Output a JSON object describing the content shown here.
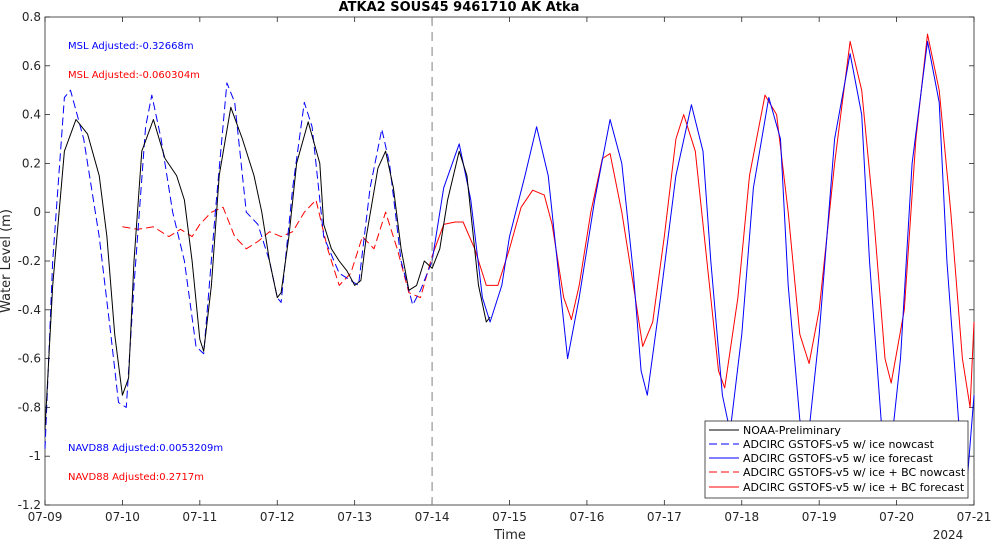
{
  "colors": {
    "observed": "#000000",
    "blue": "#0000ff",
    "red": "#ff0000",
    "axis": "#262626",
    "divider": "#808080"
  },
  "annotations": {
    "msl_blue": "MSL Adjusted:-0.32668m",
    "msl_red": "MSL Adjusted:-0.060304m",
    "navd_blue": "NAVD88 Adjusted:0.0053209m",
    "navd_red": "NAVD88 Adjusted:0.2717m"
  },
  "chart_data": {
    "type": "line",
    "title": "ATKA2 SOUS45 9461710 AK Atka",
    "xlabel": "Time",
    "ylabel": "Water Level (m)",
    "x_ticks": [
      "07-09",
      "07-10",
      "07-11",
      "07-12",
      "07-13",
      "07-14",
      "07-15",
      "07-16",
      "07-17",
      "07-18",
      "07-19",
      "07-20",
      "07-21"
    ],
    "x_year_label": "2024",
    "x_range_days": [
      9,
      21
    ],
    "ylim": [
      -1.2,
      0.8
    ],
    "y_ticks": [
      "-1.2",
      "-1",
      "-0.8",
      "-0.6",
      "-0.4",
      "-0.2",
      "0",
      "0.2",
      "0.4",
      "0.6",
      "0.8"
    ],
    "y_tick_values": [
      -1.2,
      -1.0,
      -0.8,
      -0.6,
      -0.4,
      -0.2,
      0,
      0.2,
      0.4,
      0.6,
      0.8
    ],
    "nowcast_forecast_divider_day": 14,
    "legend_position": "bottom-right",
    "series": [
      {
        "name": "NOAA-Preliminary",
        "color": "#000000",
        "dash": "solid",
        "points": [
          [
            9.0,
            -0.89
          ],
          [
            9.1,
            -0.3
          ],
          [
            9.25,
            0.25
          ],
          [
            9.4,
            0.38
          ],
          [
            9.55,
            0.32
          ],
          [
            9.7,
            0.15
          ],
          [
            9.8,
            -0.1
          ],
          [
            9.9,
            -0.5
          ],
          [
            10.0,
            -0.75
          ],
          [
            10.08,
            -0.68
          ],
          [
            10.15,
            -0.2
          ],
          [
            10.25,
            0.25
          ],
          [
            10.4,
            0.38
          ],
          [
            10.55,
            0.22
          ],
          [
            10.7,
            0.15
          ],
          [
            10.8,
            0.05
          ],
          [
            10.9,
            -0.2
          ],
          [
            11.0,
            -0.52
          ],
          [
            11.05,
            -0.57
          ],
          [
            11.15,
            -0.3
          ],
          [
            11.25,
            0.15
          ],
          [
            11.4,
            0.43
          ],
          [
            11.55,
            0.3
          ],
          [
            11.7,
            0.15
          ],
          [
            11.8,
            0.0
          ],
          [
            11.9,
            -0.2
          ],
          [
            12.0,
            -0.35
          ],
          [
            12.05,
            -0.33
          ],
          [
            12.15,
            -0.1
          ],
          [
            12.25,
            0.2
          ],
          [
            12.4,
            0.37
          ],
          [
            12.55,
            0.2
          ],
          [
            12.6,
            -0.05
          ],
          [
            12.7,
            -0.15
          ],
          [
            12.8,
            -0.2
          ],
          [
            12.9,
            -0.24
          ],
          [
            13.0,
            -0.3
          ],
          [
            13.08,
            -0.28
          ],
          [
            13.15,
            -0.1
          ],
          [
            13.3,
            0.18
          ],
          [
            13.4,
            0.25
          ],
          [
            13.5,
            0.1
          ],
          [
            13.6,
            -0.15
          ],
          [
            13.7,
            -0.32
          ],
          [
            13.8,
            -0.3
          ],
          [
            13.9,
            -0.2
          ],
          [
            14.0,
            -0.23
          ],
          [
            14.1,
            -0.15
          ],
          [
            14.2,
            0.05
          ],
          [
            14.35,
            0.25
          ],
          [
            14.45,
            0.15
          ],
          [
            14.6,
            -0.3
          ],
          [
            14.7,
            -0.45
          ],
          [
            14.75,
            -0.43
          ]
        ]
      },
      {
        "name": "ADCIRC GSTOFS-v5  w/ ice nowcast",
        "color": "#0000ff",
        "dash": "dashed",
        "points": [
          [
            9.0,
            -0.97
          ],
          [
            9.1,
            -0.2
          ],
          [
            9.25,
            0.47
          ],
          [
            9.33,
            0.5
          ],
          [
            9.5,
            0.3
          ],
          [
            9.7,
            -0.1
          ],
          [
            9.85,
            -0.5
          ],
          [
            9.95,
            -0.78
          ],
          [
            10.05,
            -0.8
          ],
          [
            10.15,
            -0.3
          ],
          [
            10.3,
            0.35
          ],
          [
            10.38,
            0.48
          ],
          [
            10.5,
            0.3
          ],
          [
            10.65,
            0.0
          ],
          [
            10.8,
            -0.2
          ],
          [
            10.95,
            -0.55
          ],
          [
            11.05,
            -0.58
          ],
          [
            11.2,
            0.0
          ],
          [
            11.35,
            0.53
          ],
          [
            11.45,
            0.45
          ],
          [
            11.6,
            0.0
          ],
          [
            11.75,
            -0.05
          ],
          [
            11.9,
            -0.2
          ],
          [
            12.0,
            -0.35
          ],
          [
            12.05,
            -0.37
          ],
          [
            12.2,
            0.1
          ],
          [
            12.35,
            0.45
          ],
          [
            12.45,
            0.35
          ],
          [
            12.6,
            -0.1
          ],
          [
            12.8,
            -0.25
          ],
          [
            12.95,
            -0.28
          ],
          [
            13.05,
            -0.3
          ],
          [
            13.2,
            0.1
          ],
          [
            13.35,
            0.34
          ],
          [
            13.45,
            0.2
          ],
          [
            13.6,
            -0.2
          ],
          [
            13.75,
            -0.38
          ],
          [
            13.85,
            -0.32
          ],
          [
            14.0,
            -0.2
          ]
        ]
      },
      {
        "name": "ADCIRC GSTOFS-v5  w/ ice forecast",
        "color": "#0000ff",
        "dash": "solid",
        "points": [
          [
            14.0,
            -0.2
          ],
          [
            14.15,
            0.1
          ],
          [
            14.35,
            0.28
          ],
          [
            14.5,
            0.05
          ],
          [
            14.65,
            -0.35
          ],
          [
            14.75,
            -0.45
          ],
          [
            14.9,
            -0.3
          ],
          [
            15.0,
            -0.1
          ],
          [
            15.2,
            0.15
          ],
          [
            15.35,
            0.35
          ],
          [
            15.5,
            0.15
          ],
          [
            15.65,
            -0.3
          ],
          [
            15.75,
            -0.6
          ],
          [
            15.9,
            -0.35
          ],
          [
            16.1,
            0.05
          ],
          [
            16.3,
            0.38
          ],
          [
            16.45,
            0.2
          ],
          [
            16.6,
            -0.25
          ],
          [
            16.7,
            -0.65
          ],
          [
            16.78,
            -0.75
          ],
          [
            16.95,
            -0.35
          ],
          [
            17.15,
            0.15
          ],
          [
            17.35,
            0.44
          ],
          [
            17.5,
            0.25
          ],
          [
            17.6,
            -0.2
          ],
          [
            17.75,
            -0.75
          ],
          [
            17.85,
            -0.9
          ],
          [
            18.0,
            -0.5
          ],
          [
            18.15,
            0.1
          ],
          [
            18.35,
            0.47
          ],
          [
            18.5,
            0.3
          ],
          [
            18.6,
            -0.3
          ],
          [
            18.75,
            -0.85
          ],
          [
            18.85,
            -0.95
          ],
          [
            19.0,
            -0.5
          ],
          [
            19.2,
            0.3
          ],
          [
            19.4,
            0.65
          ],
          [
            19.55,
            0.4
          ],
          [
            19.65,
            -0.2
          ],
          [
            19.8,
            -0.85
          ],
          [
            19.9,
            -1.05
          ],
          [
            20.05,
            -0.6
          ],
          [
            20.2,
            0.2
          ],
          [
            20.4,
            0.7
          ],
          [
            20.55,
            0.45
          ],
          [
            20.65,
            -0.2
          ],
          [
            20.8,
            -0.85
          ],
          [
            20.92,
            -1.07
          ],
          [
            21.0,
            -0.75
          ]
        ]
      },
      {
        "name": "ADCIRC GSTOFS-v5  w/ ice + BC nowcast",
        "color": "#ff0000",
        "dash": "dashed",
        "points": [
          [
            10.0,
            -0.06
          ],
          [
            10.2,
            -0.07
          ],
          [
            10.4,
            -0.06
          ],
          [
            10.6,
            -0.1
          ],
          [
            10.75,
            -0.07
          ],
          [
            10.9,
            -0.1
          ],
          [
            11.0,
            -0.05
          ],
          [
            11.15,
            0.0
          ],
          [
            11.3,
            0.02
          ],
          [
            11.45,
            -0.1
          ],
          [
            11.6,
            -0.15
          ],
          [
            11.75,
            -0.12
          ],
          [
            11.9,
            -0.08
          ],
          [
            12.05,
            -0.1
          ],
          [
            12.2,
            -0.08
          ],
          [
            12.35,
            0.0
          ],
          [
            12.5,
            0.05
          ],
          [
            12.65,
            -0.15
          ],
          [
            12.8,
            -0.3
          ],
          [
            12.95,
            -0.25
          ],
          [
            13.1,
            -0.1
          ],
          [
            13.25,
            -0.15
          ],
          [
            13.4,
            0.0
          ],
          [
            13.55,
            -0.15
          ],
          [
            13.7,
            -0.33
          ],
          [
            13.85,
            -0.35
          ],
          [
            14.0,
            -0.18
          ]
        ]
      },
      {
        "name": "ADCIRC GSTOFS-v5  w/ ice + BC forecast",
        "color": "#ff0000",
        "dash": "solid",
        "points": [
          [
            14.0,
            -0.18
          ],
          [
            14.15,
            -0.05
          ],
          [
            14.3,
            -0.04
          ],
          [
            14.4,
            -0.04
          ],
          [
            14.55,
            -0.15
          ],
          [
            14.7,
            -0.3
          ],
          [
            14.85,
            -0.3
          ],
          [
            15.0,
            -0.15
          ],
          [
            15.15,
            0.02
          ],
          [
            15.3,
            0.09
          ],
          [
            15.45,
            0.07
          ],
          [
            15.55,
            -0.05
          ],
          [
            15.7,
            -0.35
          ],
          [
            15.8,
            -0.44
          ],
          [
            15.9,
            -0.3
          ],
          [
            16.05,
            0.0
          ],
          [
            16.2,
            0.22
          ],
          [
            16.3,
            0.24
          ],
          [
            16.45,
            0.0
          ],
          [
            16.6,
            -0.3
          ],
          [
            16.72,
            -0.55
          ],
          [
            16.85,
            -0.45
          ],
          [
            17.0,
            -0.1
          ],
          [
            17.15,
            0.3
          ],
          [
            17.25,
            0.4
          ],
          [
            17.4,
            0.25
          ],
          [
            17.55,
            -0.2
          ],
          [
            17.7,
            -0.65
          ],
          [
            17.78,
            -0.72
          ],
          [
            17.95,
            -0.35
          ],
          [
            18.1,
            0.15
          ],
          [
            18.3,
            0.48
          ],
          [
            18.45,
            0.4
          ],
          [
            18.6,
            0.0
          ],
          [
            18.75,
            -0.5
          ],
          [
            18.87,
            -0.62
          ],
          [
            19.0,
            -0.4
          ],
          [
            19.2,
            0.2
          ],
          [
            19.4,
            0.7
          ],
          [
            19.55,
            0.5
          ],
          [
            19.7,
            0.0
          ],
          [
            19.85,
            -0.6
          ],
          [
            19.93,
            -0.7
          ],
          [
            20.1,
            -0.4
          ],
          [
            20.25,
            0.3
          ],
          [
            20.4,
            0.73
          ],
          [
            20.55,
            0.5
          ],
          [
            20.7,
            0.0
          ],
          [
            20.85,
            -0.6
          ],
          [
            20.95,
            -0.8
          ],
          [
            21.0,
            -0.45
          ]
        ]
      }
    ]
  }
}
